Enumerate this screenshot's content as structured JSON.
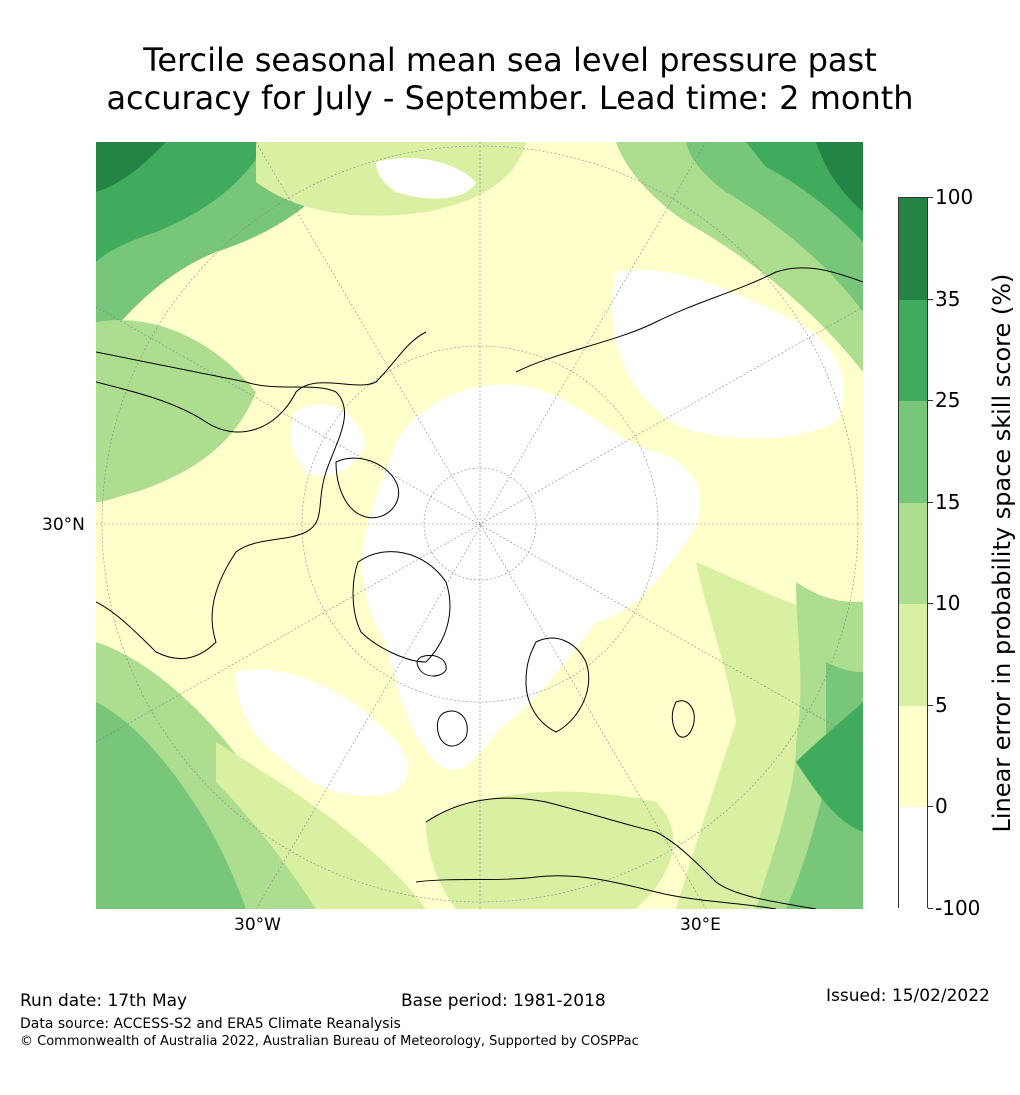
{
  "title": {
    "line1": "Tercile seasonal mean sea level pressure past",
    "line2": "accuracy for July - September. Lead time: 2 month"
  },
  "map": {
    "projection": "north-polar-stereographic",
    "labels": {
      "lat_30n": "30°N",
      "lon_30w": "30°W",
      "lon_30e": "30°E"
    }
  },
  "colorbar": {
    "label": "Linear error in probability space skill score (%)",
    "ticks": [
      "100",
      "35",
      "25",
      "15",
      "10",
      "5",
      "0",
      "-100"
    ],
    "bins": [
      {
        "range": "-100 to 0",
        "color": "#ffffff"
      },
      {
        "range": "0 to 5",
        "color": "#ffffcc"
      },
      {
        "range": "5 to 10",
        "color": "#d9f0a3"
      },
      {
        "range": "10 to 15",
        "color": "#addd8e"
      },
      {
        "range": "15 to 25",
        "color": "#78c679"
      },
      {
        "range": "25 to 35",
        "color": "#41ab5d"
      },
      {
        "range": "35 to 100",
        "color": "#238443"
      }
    ]
  },
  "footer": {
    "run_date": "Run date: 17th May",
    "base_period": "Base period: 1981-2018",
    "issued": "Issued: 15/02/2022",
    "data_source": "Data source: ACCESS-S2 and ERA5 Climate Reanalysis",
    "copyright": "© Commonwealth of Australia 2022, Australian Bureau of Meteorology, Supported by COSPPac"
  }
}
